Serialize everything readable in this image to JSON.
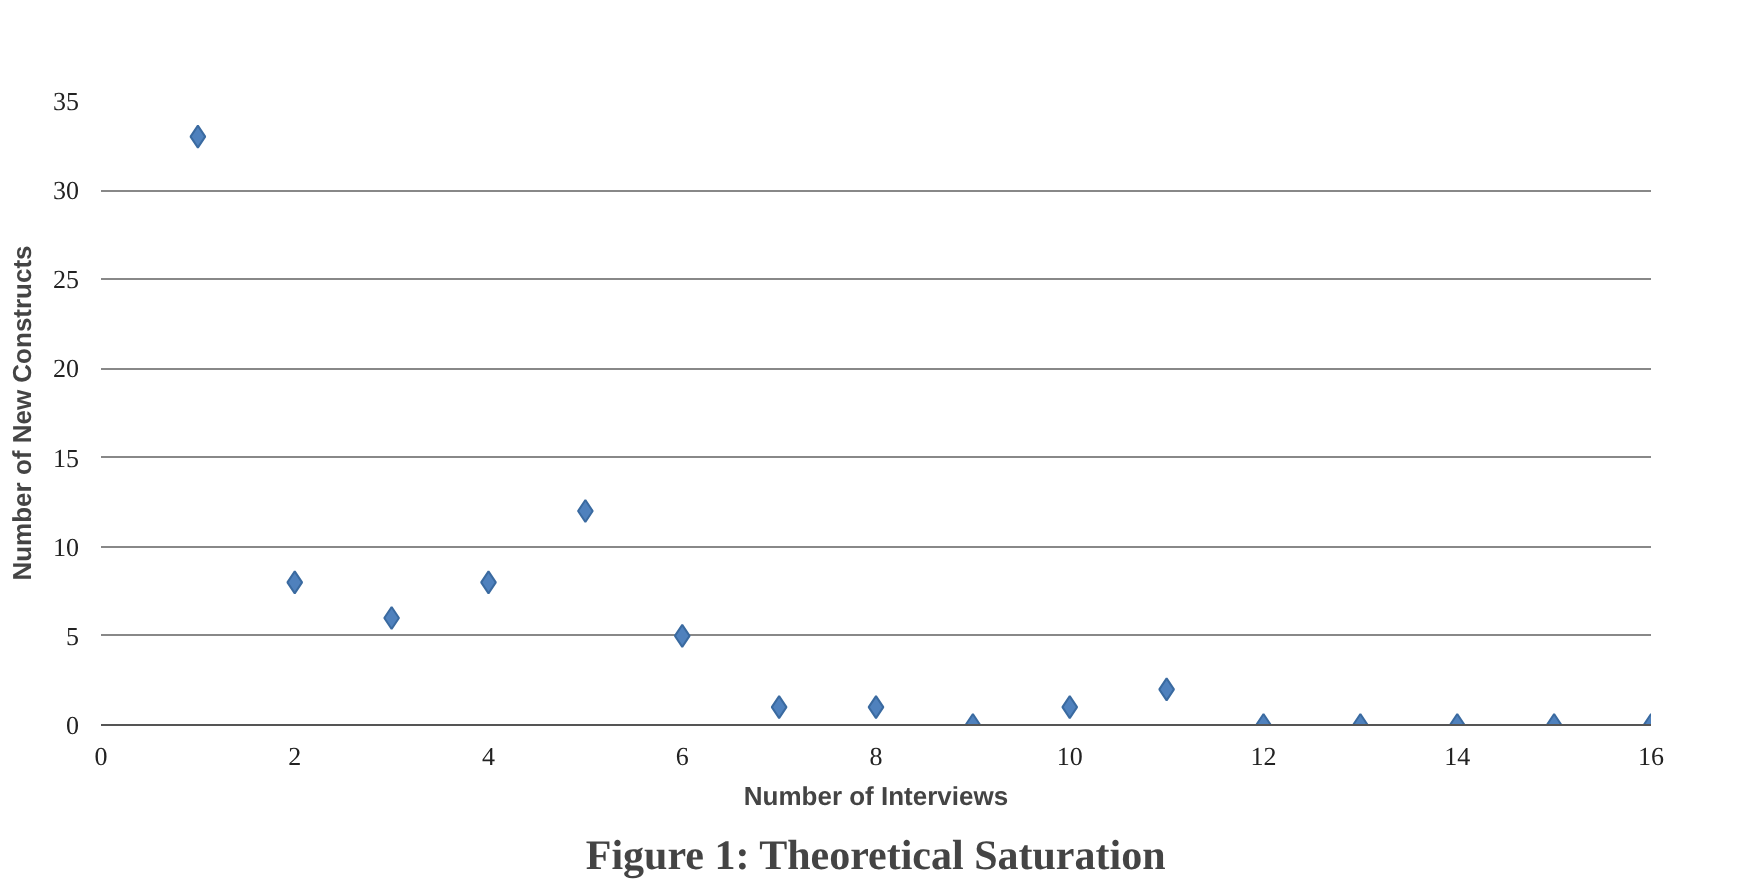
{
  "chart_data": {
    "type": "scatter",
    "xlabel": "Number of Interviews",
    "ylabel": "Number of New Constructs",
    "x": [
      1,
      2,
      3,
      4,
      5,
      6,
      7,
      8,
      9,
      10,
      11,
      12,
      13,
      14,
      15,
      16
    ],
    "values": [
      33,
      8,
      6,
      8,
      12,
      5,
      1,
      1,
      0,
      1,
      2,
      0,
      0,
      0,
      0,
      0
    ],
    "color": "#4f81bd",
    "marker": "diamond",
    "xlim": [
      0,
      16
    ],
    "xticks": [
      0,
      2,
      4,
      6,
      8,
      10,
      12,
      14,
      16
    ],
    "ylim": [
      0,
      35
    ],
    "yticks": [
      0,
      5,
      10,
      15,
      20,
      25,
      30,
      35
    ],
    "grid": "y",
    "annotations": [
      "Figure 1: Theoretical Saturation"
    ]
  }
}
